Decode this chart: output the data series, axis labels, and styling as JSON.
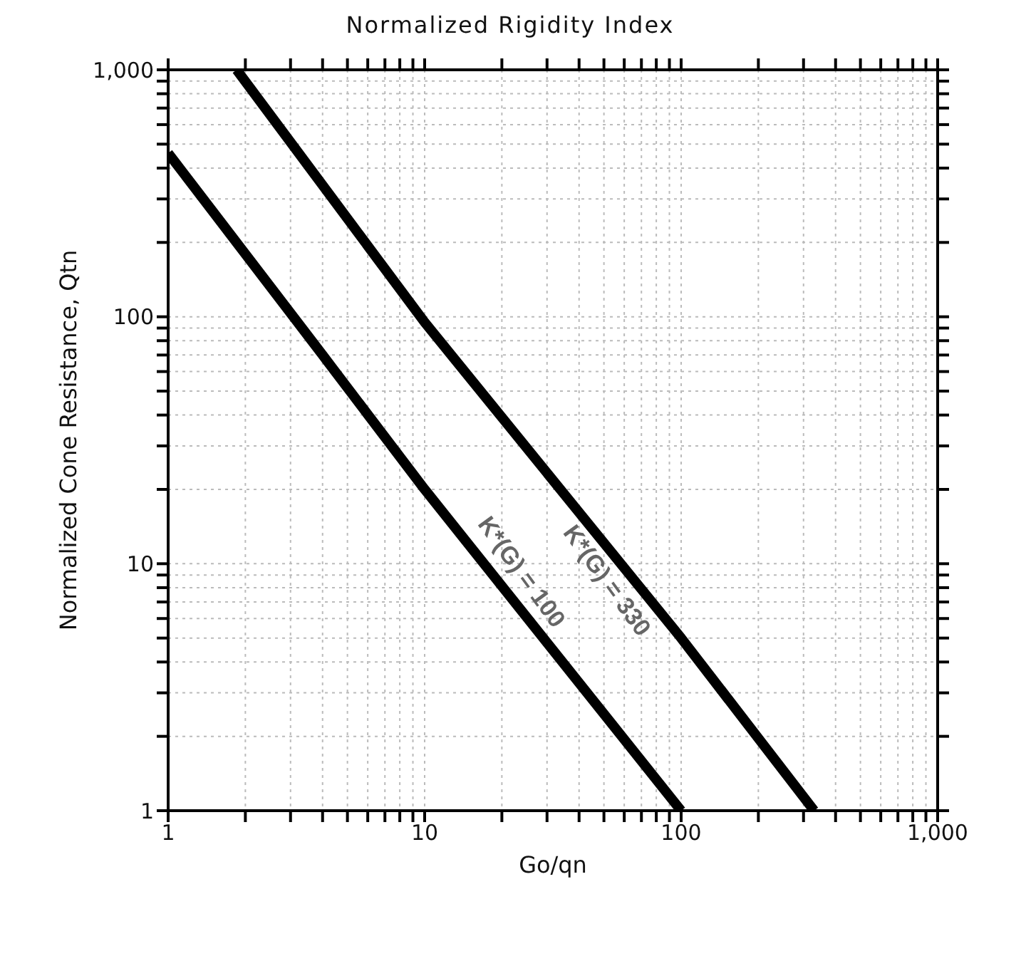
{
  "chart_data": {
    "type": "line",
    "title": "Normalized Rigidity Index",
    "xlabel": "Go/qn",
    "ylabel": "Normalized Cone Resistance, Qtn",
    "log": "xy",
    "grid": true,
    "marker": "none",
    "line_style": "solid",
    "xlim": [
      1,
      1000
    ],
    "ylim": [
      1,
      1000
    ],
    "xticks": [
      1,
      {
        "value": 2,
        "label": null
      },
      {
        "value": 3,
        "label": null
      },
      {
        "value": 4,
        "label": null
      },
      {
        "value": 5,
        "label": null
      },
      {
        "value": 6,
        "label": null
      },
      {
        "value": 7,
        "label": null
      },
      {
        "value": 8,
        "label": null
      },
      {
        "value": 9,
        "label": null
      },
      10,
      {
        "value": 20,
        "label": null
      },
      {
        "value": 30,
        "label": null
      },
      {
        "value": 40,
        "label": null
      },
      {
        "value": 50,
        "label": null
      },
      {
        "value": 60,
        "label": null
      },
      {
        "value": 70,
        "label": null
      },
      {
        "value": 80,
        "label": null
      },
      {
        "value": 90,
        "label": null
      },
      100,
      {
        "value": 200,
        "label": null
      },
      {
        "value": 300,
        "label": null
      },
      {
        "value": 400,
        "label": null
      },
      {
        "value": 500,
        "label": null
      },
      {
        "value": 600,
        "label": null
      },
      {
        "value": 700,
        "label": null
      },
      {
        "value": 800,
        "label": null
      },
      {
        "value": 900,
        "label": null
      },
      {
        "value": 1000,
        "label": "1,000"
      }
    ],
    "yticks": [
      1,
      {
        "value": 2,
        "label": null
      },
      {
        "value": 3,
        "label": null
      },
      {
        "value": 4,
        "label": null
      },
      {
        "value": 5,
        "label": null
      },
      {
        "value": 6,
        "label": null
      },
      {
        "value": 7,
        "label": null
      },
      {
        "value": 8,
        "label": null
      },
      {
        "value": 9,
        "label": null
      },
      10,
      {
        "value": 20,
        "label": null
      },
      {
        "value": 30,
        "label": null
      },
      {
        "value": 40,
        "label": null
      },
      {
        "value": 50,
        "label": null
      },
      {
        "value": 60,
        "label": null
      },
      {
        "value": 70,
        "label": null
      },
      {
        "value": 80,
        "label": null
      },
      {
        "value": 90,
        "label": null
      },
      100,
      {
        "value": 200,
        "label": null
      },
      {
        "value": 300,
        "label": null
      },
      {
        "value": 400,
        "label": null
      },
      {
        "value": 500,
        "label": null
      },
      {
        "value": 600,
        "label": null
      },
      {
        "value": 700,
        "label": null
      },
      {
        "value": 800,
        "label": null
      },
      {
        "value": 900,
        "label": null
      },
      {
        "value": 1000,
        "label": "1,000"
      }
    ],
    "series": [
      {
        "color": "#000000",
        "x": [
          1,
          4,
          10,
          100
        ],
        "values": [
          460,
          70,
          20,
          1
        ]
      },
      {
        "color": "#000000",
        "x": [
          1.85,
          10,
          100,
          330
        ],
        "values": [
          1000,
          95,
          5,
          1
        ]
      }
    ],
    "annotations": [
      {
        "text": "K*(G) = 100",
        "x": 20,
        "y": 8.1
      },
      {
        "text": "K*(G) = 330",
        "x": 60,
        "y": 9.6
      }
    ]
  }
}
